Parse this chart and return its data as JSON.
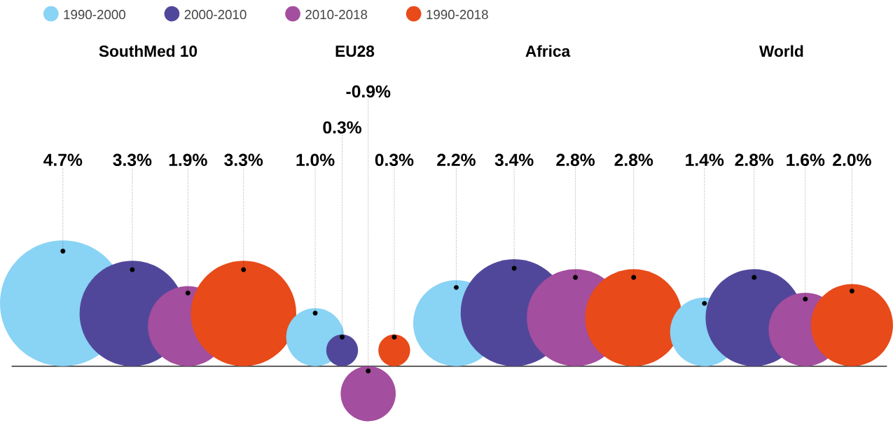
{
  "chart_data": {
    "type": "other",
    "categories": [
      "SouthMed 10",
      "EU28",
      "Africa",
      "World"
    ],
    "series": [
      {
        "name": "1990-2000",
        "color": "#89d3f5",
        "values": [
          4.7,
          1.0,
          2.2,
          1.4
        ],
        "value_labels": [
          "4.7%",
          "1.0%",
          "2.2%",
          "1.4%"
        ]
      },
      {
        "name": "2000-2010",
        "color": "#51479a",
        "values": [
          3.3,
          0.3,
          3.4,
          2.8
        ],
        "value_labels": [
          "3.3%",
          "0.3%",
          "3.4%",
          "2.8%"
        ]
      },
      {
        "name": "2010-2018",
        "color": "#a34e9e",
        "values": [
          1.9,
          -0.9,
          2.8,
          1.6
        ],
        "value_labels": [
          "1.9%",
          "-0.9%",
          "2.8%",
          "1.6%"
        ]
      },
      {
        "name": "1990-2018",
        "color": "#e84a1a",
        "values": [
          3.3,
          0.3,
          2.8,
          2.0
        ],
        "value_labels": [
          "3.3%",
          "0.3%",
          "2.8%",
          "2.0%"
        ]
      }
    ],
    "legend": "top left"
  }
}
